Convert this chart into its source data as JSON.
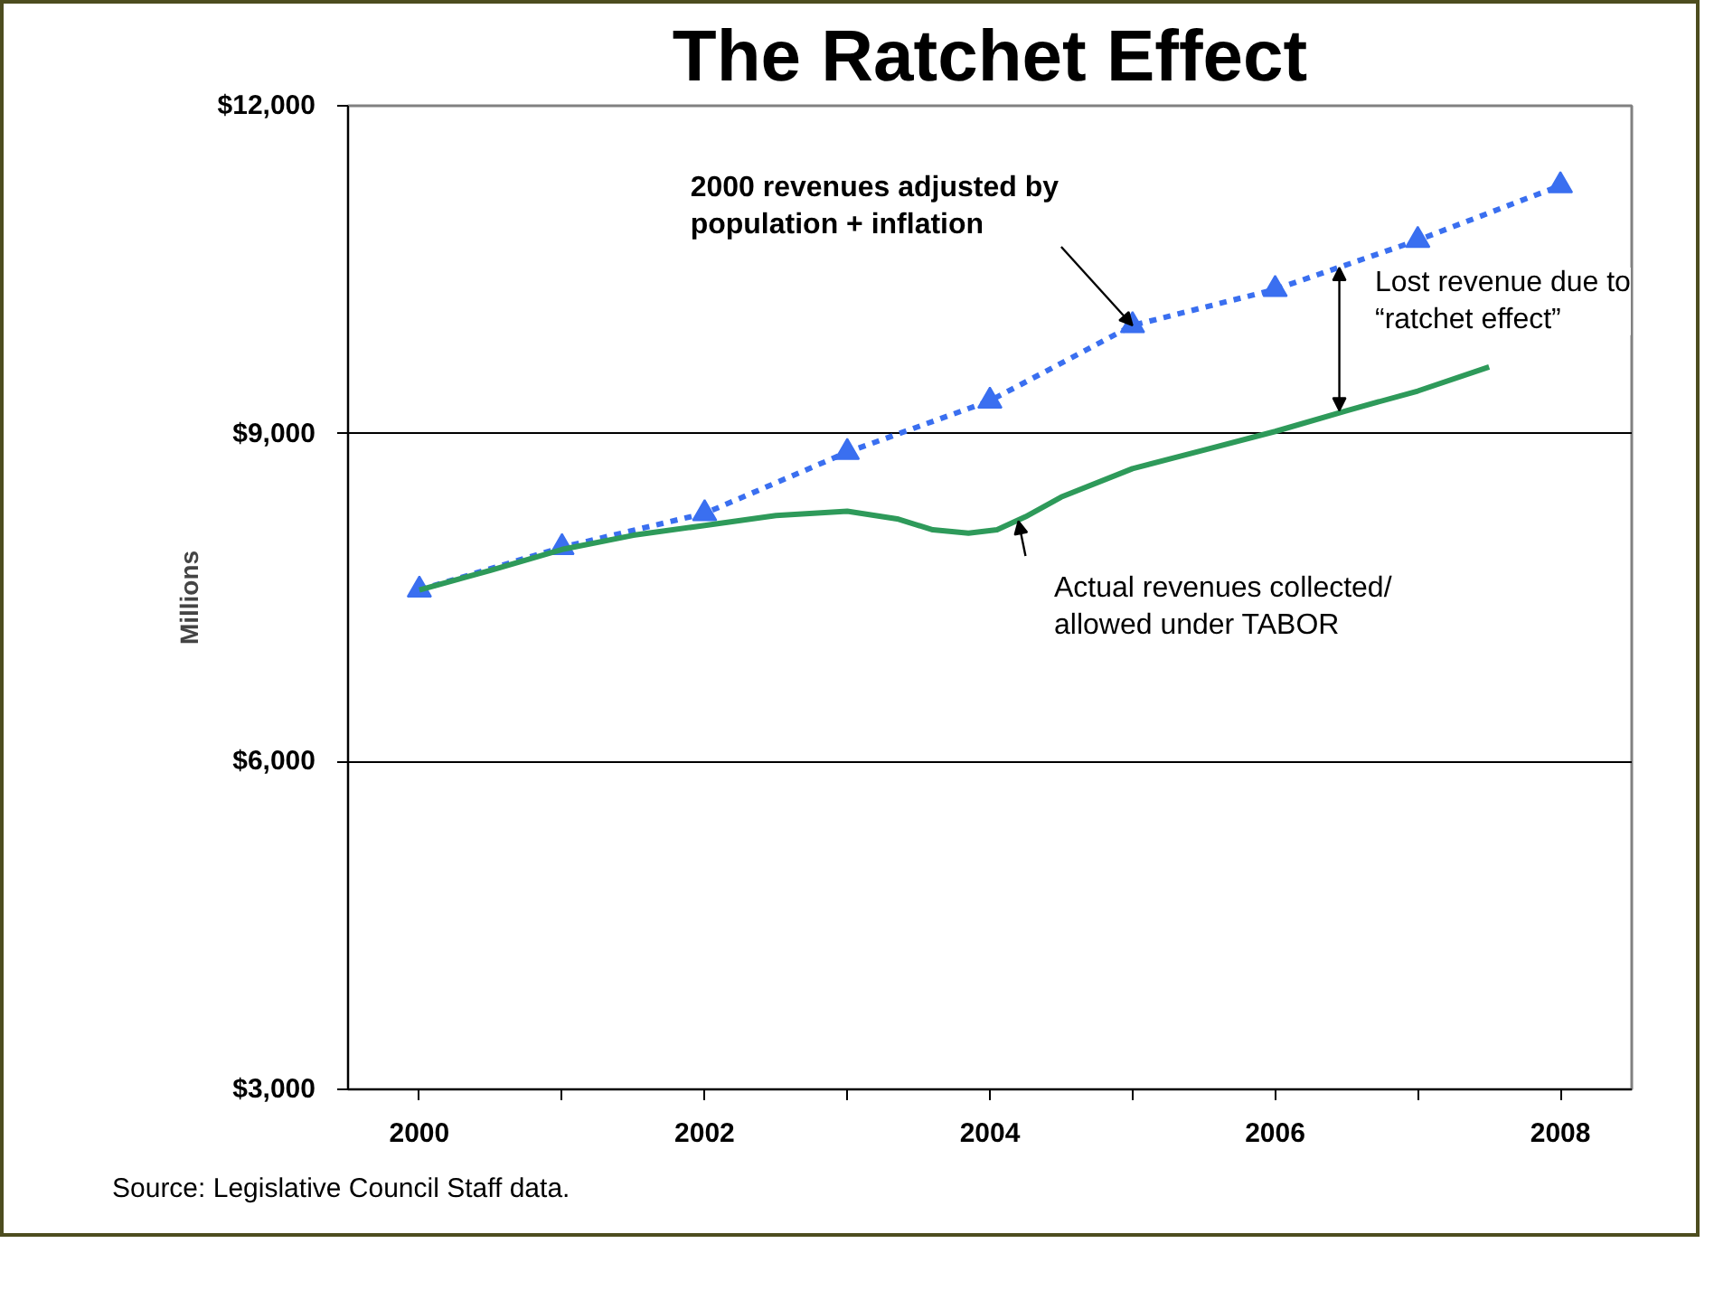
{
  "chart_data": {
    "type": "line",
    "title": "The Ratchet Effect",
    "ylabel": "Millions",
    "xlim": [
      1999.5,
      2008.5
    ],
    "xticks": [
      2000,
      {
        "value": 2001,
        "label": null
      },
      2002,
      {
        "value": 2003,
        "label": null
      },
      2004,
      {
        "value": 2005,
        "label": null
      },
      2006,
      {
        "value": 2007,
        "label": null
      },
      2008
    ],
    "ylim": [
      3000,
      12000
    ],
    "yticks": [
      {
        "value": 3000,
        "label": "$3,000"
      },
      {
        "value": 6000,
        "label": "$6,000"
      },
      {
        "value": 9000,
        "label": "$9,000"
      },
      {
        "value": 12000,
        "label": "$12,000"
      }
    ],
    "grid": "y",
    "series": [
      {
        "color": "#3a6ff0",
        "marker": "triangle",
        "line_style": "dashed",
        "x": [
          2000,
          2001,
          2002,
          2003,
          2004,
          2005,
          2006,
          2007,
          2008
        ],
        "values": [
          7570,
          7960,
          8270,
          8830,
          9300,
          9990,
          10320,
          10770,
          11270
        ]
      },
      {
        "color": "#2e9a5a",
        "marker": "none",
        "line_style": "solid",
        "x": [
          2000,
          2000.5,
          2001,
          2001.5,
          2002,
          2002.5,
          2003,
          2003.35,
          2003.6,
          2003.85,
          2004.05,
          2004.25,
          2004.5,
          2005,
          2005.5,
          2006,
          2006.5,
          2007,
          2007.5
        ],
        "values": [
          7570,
          7750,
          7940,
          8070,
          8160,
          8250,
          8290,
          8220,
          8120,
          8090,
          8120,
          8240,
          8420,
          8680,
          8850,
          9020,
          9210,
          9390,
          9610
        ]
      }
    ],
    "annotations": [
      {
        "text": "2000 revenues adjusted by\npopulation + inflation",
        "x": 2005,
        "y": 9990
      },
      {
        "text": "Lost revenue due to\n“ratchet effect”",
        "x": 2006.45,
        "y": 10520
      },
      {
        "text": "Actual revenues collected/\nallowed under TABOR",
        "x": 2004.2,
        "y": 8200
      },
      "Source: Legislative Council Staff data."
    ]
  }
}
